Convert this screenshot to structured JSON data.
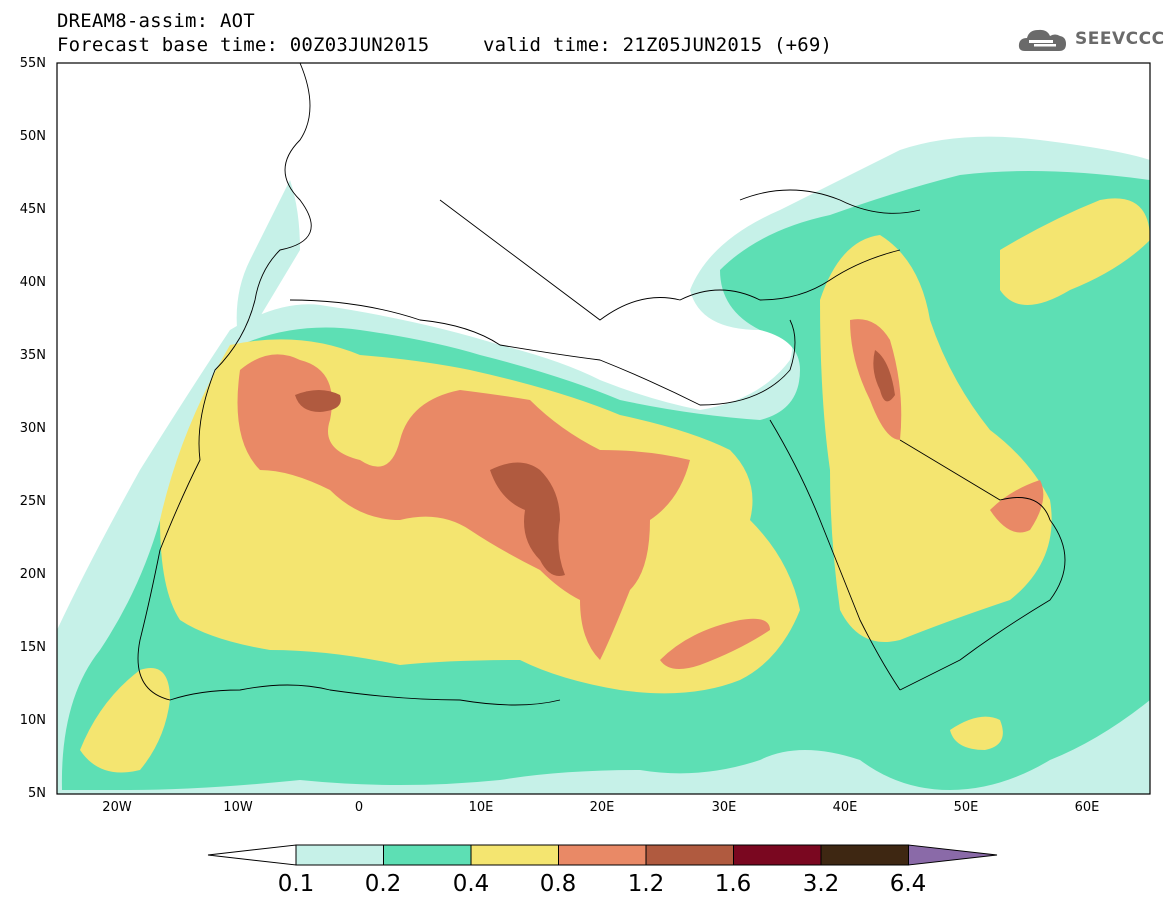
{
  "header": {
    "model_line": "DREAM8-assim: AOT",
    "base_time": "Forecast base time: 00Z03JUN2015",
    "valid_time": "valid time: 21Z05JUN2015 (+69)"
  },
  "logo": {
    "text": "SEEVCCC",
    "icon": "cloud-icon"
  },
  "map": {
    "latitude_labels": [
      "55N",
      "50N",
      "45N",
      "40N",
      "35N",
      "30N",
      "25N",
      "20N",
      "15N",
      "10N",
      "5N"
    ],
    "longitude_labels": [
      "20W",
      "10W",
      "0",
      "10E",
      "20E",
      "30E",
      "40E",
      "50E",
      "60E"
    ],
    "region": "North Africa, Mediterranean, Middle East",
    "lat_range": [
      5,
      55
    ],
    "lon_range": [
      -25,
      65
    ]
  },
  "colorbar": {
    "ticks": [
      "0.1",
      "0.2",
      "0.4",
      "0.8",
      "1.2",
      "1.6",
      "3.2",
      "6.4"
    ],
    "colors": {
      "below": "#ffffff",
      "c1": "#c6f1e8",
      "c2": "#5ddfb4",
      "c3": "#f4e570",
      "c4": "#e98966",
      "c5": "#b05a3f",
      "c6": "#7a0720",
      "c7": "#3e2712",
      "above": "#8a6aa8"
    }
  }
}
